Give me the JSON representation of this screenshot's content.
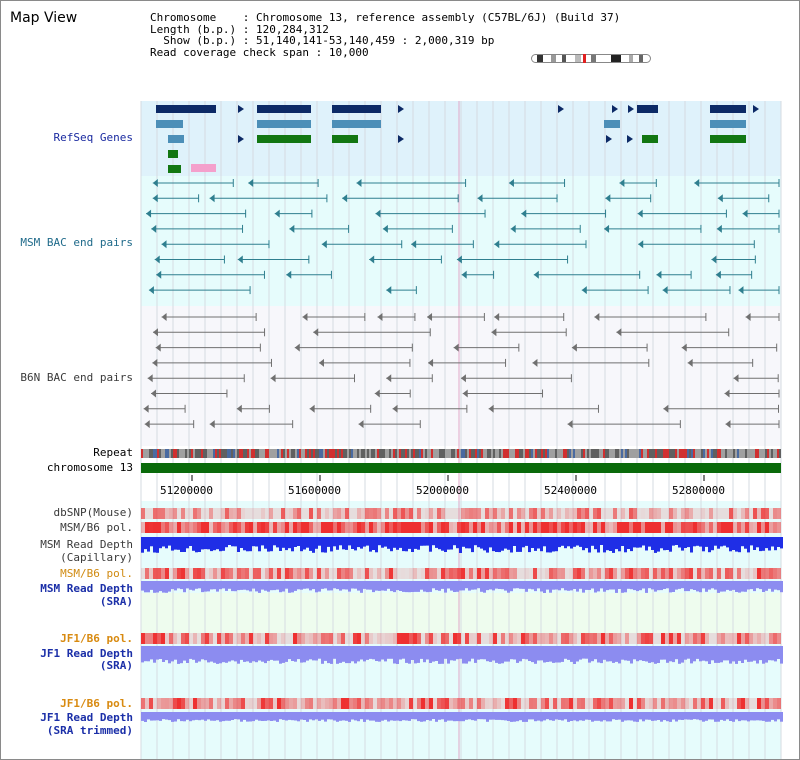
{
  "title": "Map View",
  "info": {
    "chromosome_label": "Chromosome",
    "chromosome_value": "Chromosome 13, reference assembly (C57BL/6J) (Build 37)",
    "length_label": "Length (b.p.)",
    "length_value": "120,284,312",
    "show_label": "Show (b.p.)",
    "show_value": "51,140,141-53,140,459 : 2,000,319 bp",
    "coverage_label": "Read coverage check span",
    "coverage_value": "10,000"
  },
  "tracks": {
    "refseq": "RefSeq Genes",
    "msm_bac": "MSM BAC end pairs",
    "b6n_bac": "B6N BAC end pairs",
    "repeat": "Repeat",
    "chrom": "chromosome 13",
    "dbsnp": "dbSNP(Mouse)",
    "msm_b6_pol": "MSM/B6 pol.",
    "msm_depth_cap_1": "MSM Read Depth",
    "msm_depth_cap_2": "(Capillary)",
    "msm_b6_pol2": "MSM/B6 pol.",
    "msm_depth_sra_1": "MSM Read Depth",
    "msm_depth_sra_2": "(SRA)",
    "jf1_pol": "JF1/B6 pol.",
    "jf1_depth_1": "JF1 Read Depth",
    "jf1_depth_2": "(SRA)",
    "jf1_pol2": "JF1/B6 pol.",
    "jf1_trim_1": "JF1 Read Depth",
    "jf1_trim_2": "(SRA trimmed)"
  },
  "axis_ticks": [
    "51200000",
    "51600000",
    "52000000",
    "52400000",
    "52800000"
  ],
  "colors": {
    "refseq_bg": "#dff2fb",
    "track_bg": "#e6fcfc",
    "navy": "#0c2a66",
    "steel": "#4c8fb8",
    "green": "#127712",
    "teal_line": "#2f7f8f",
    "gray_line": "#707070",
    "chrom_green": "#0a6a0a",
    "depth_blue": "#1f2ee6",
    "depth_light": "#8c8cf0",
    "pol_red": "#ee3030"
  }
}
